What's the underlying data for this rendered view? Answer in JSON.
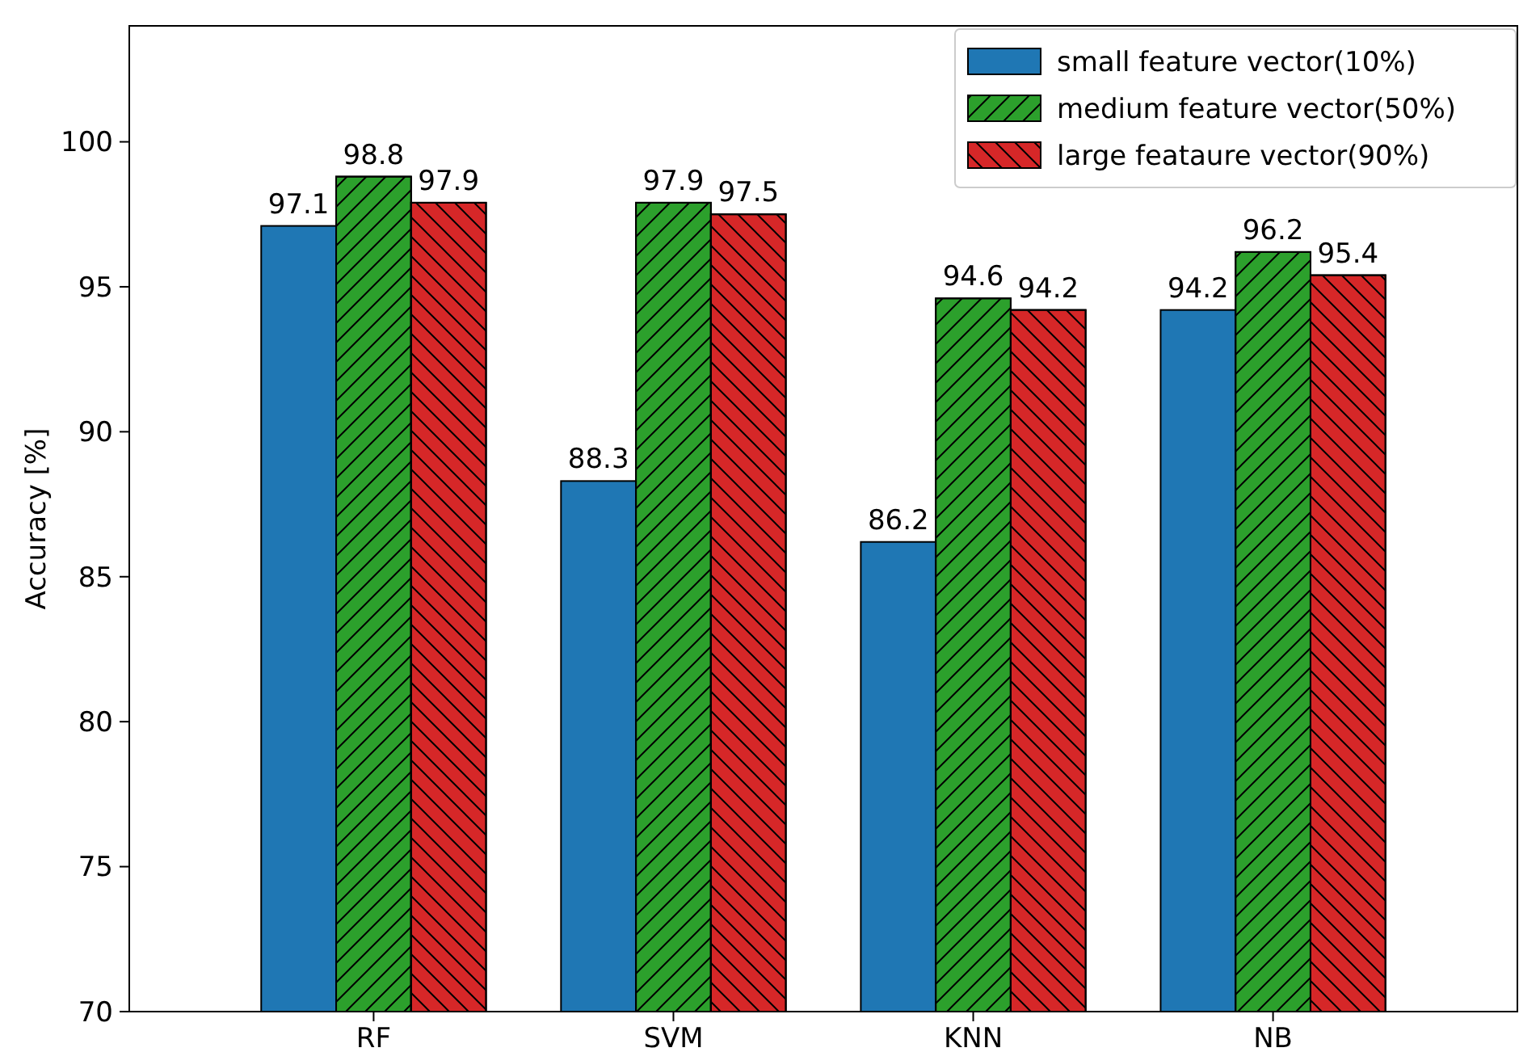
{
  "chart_data": {
    "type": "bar",
    "ylabel": "Accuracy [%]",
    "categories": [
      "RF",
      "SVM",
      "KNN",
      "NB"
    ],
    "series": [
      {
        "name": "small feature vector(10%)",
        "color": "#1f77b4",
        "values": [
          97.1,
          88.3,
          86.2,
          94.2
        ]
      },
      {
        "name": "medium feature vector(50%)",
        "color": "#2ca02c",
        "values": [
          98.8,
          97.9,
          94.6,
          96.2
        ]
      },
      {
        "name": "large feataure vector(90%)",
        "color": "#d62728",
        "values": [
          97.9,
          97.5,
          94.2,
          95.4
        ]
      }
    ],
    "ylim": [
      70,
      104
    ],
    "yticks": [
      70,
      75,
      80,
      85,
      90,
      95,
      100
    ],
    "data_labels": true,
    "legend": "top right",
    "grid": false
  }
}
